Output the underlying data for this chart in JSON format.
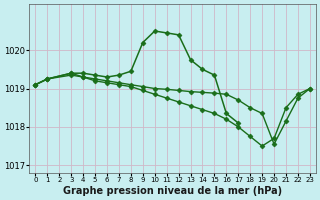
{
  "series": [
    {
      "x": [
        0,
        1,
        2,
        3,
        4,
        5,
        6,
        7,
        8,
        9,
        10,
        11,
        12,
        13,
        14,
        15,
        16,
        17,
        18,
        19,
        20,
        21,
        22,
        23
      ],
      "y": [
        1019.1,
        1019.2,
        null,
        1019.4,
        1019.4,
        1019.3,
        1019.3,
        1019.35,
        1019.4,
        1020.2,
        1020.5,
        1020.45,
        1020.4,
        1019.8,
        1019.5,
        1019.3,
        1018.4,
        1018.1,
        null,
        null,
        null,
        null,
        null,
        null
      ],
      "color": "#1a6e1a",
      "linewidth": 1.2,
      "marker": "D",
      "markersize": 3
    },
    {
      "x": [
        0,
        1,
        2,
        3,
        4,
        5,
        6,
        7,
        8,
        9,
        10,
        11,
        12,
        13,
        14,
        15,
        16,
        17,
        18,
        19,
        20,
        21,
        22,
        23
      ],
      "y": [
        1019.1,
        1019.2,
        null,
        1019.4,
        1019.3,
        1019.2,
        1019.1,
        1019.0,
        1018.9,
        1018.8,
        1018.7,
        1018.6,
        1018.5,
        1018.4,
        1018.3,
        1018.2,
        1018.0,
        1017.8,
        1017.6,
        1017.5,
        1017.7,
        1018.6,
        1018.9,
        1019.0
      ],
      "color": "#1a6e1a",
      "linewidth": 1.0,
      "marker": "D",
      "markersize": 2
    },
    {
      "x": [
        0,
        1,
        2,
        3,
        4,
        5,
        6,
        7,
        8,
        9,
        10,
        11,
        12,
        13,
        14,
        15,
        16,
        17,
        18,
        19,
        20,
        21,
        22,
        23
      ],
      "y": [
        1019.1,
        1019.2,
        null,
        1019.35,
        1019.3,
        1019.25,
        1019.2,
        1019.15,
        1019.1,
        1019.05,
        1019.0,
        1018.95,
        1018.9,
        1018.85,
        1018.8,
        1018.75,
        1018.7,
        1018.6,
        1018.5,
        1018.4,
        1017.6,
        1018.2,
        1018.8,
        1019.0
      ],
      "color": "#1a6e1a",
      "linewidth": 1.0,
      "marker": "D",
      "markersize": 2
    }
  ],
  "xlim": [
    -0.5,
    23.5
  ],
  "ylim": [
    1016.8,
    1021.2
  ],
  "yticks": [
    1017,
    1018,
    1019,
    1020
  ],
  "xticks": [
    0,
    1,
    2,
    3,
    4,
    5,
    6,
    7,
    8,
    9,
    10,
    11,
    12,
    13,
    14,
    15,
    16,
    17,
    18,
    19,
    20,
    21,
    22,
    23
  ],
  "xlabel": "Graphe pression niveau de la mer (hPa)",
  "bg_color": "#c8eef0",
  "grid_color": "#d0b8c8",
  "line_color": "#1a6e1a",
  "tick_fontsize": 5.5,
  "label_fontsize": 7
}
